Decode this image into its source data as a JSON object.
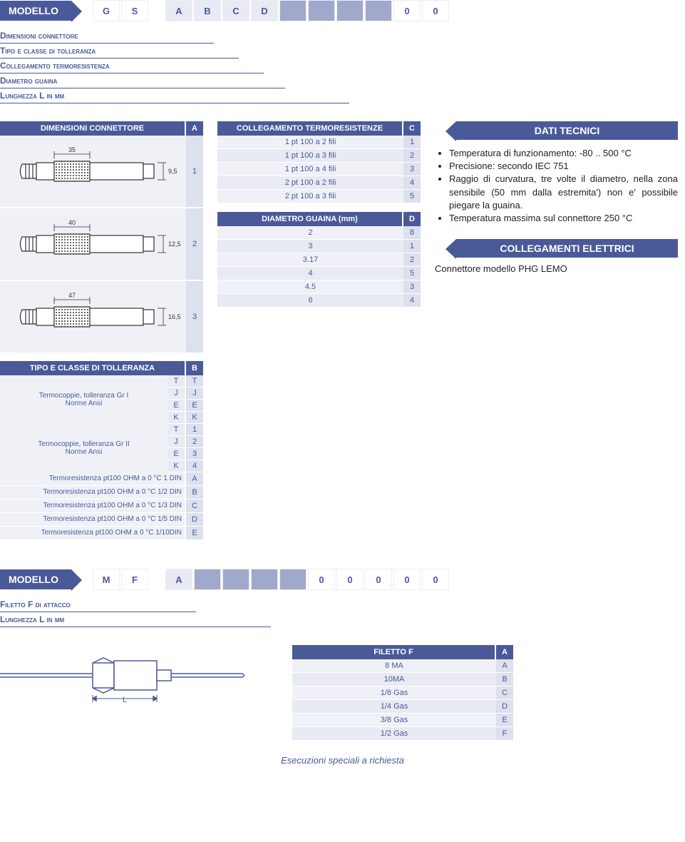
{
  "model1": {
    "label": "MODELLO",
    "cells": [
      "G",
      "S",
      "",
      "A",
      "B",
      "C",
      "D",
      "",
      "",
      "",
      "",
      "0",
      "0"
    ]
  },
  "legend1": [
    "Dimensioni connettore",
    "Tipo e classe di tolleranza",
    "Collegamento termoresistenza",
    "Diametro guaina",
    "Lunghezza L in mm"
  ],
  "dimConn": {
    "header": "DIMENSIONI CONNETTORE",
    "code": "A",
    "rows": [
      {
        "len": "35",
        "dia": "9,5",
        "code": "1"
      },
      {
        "len": "40",
        "dia": "12,5",
        "code": "2"
      },
      {
        "len": "47",
        "dia": "16,5",
        "code": "3"
      }
    ]
  },
  "tolleranza": {
    "header": "TIPO E CLASSE DI TOLLERANZA",
    "code": "B",
    "group1": {
      "label": "Termocoppie, tolleranza Gr I\nNorme Ansi",
      "rows": [
        [
          "T",
          "T"
        ],
        [
          "J",
          "J"
        ],
        [
          "E",
          "E"
        ],
        [
          "K",
          "K"
        ]
      ]
    },
    "group2": {
      "label": "Termocoppie, tolleranza Gr II\nNorme Ansi",
      "rows": [
        [
          "T",
          "1"
        ],
        [
          "J",
          "2"
        ],
        [
          "E",
          "3"
        ],
        [
          "K",
          "4"
        ]
      ]
    },
    "singles": [
      {
        "label": "Termoresistenza pt100 OHM a 0 °C 1 DIN",
        "code": "A"
      },
      {
        "label": "Termoresistenza pt100 OHM a 0 °C 1/2 DIN",
        "code": "B"
      },
      {
        "label": "Termoresistenza pt100 OHM a 0 °C 1/3 DIN",
        "code": "C"
      },
      {
        "label": "Termoresistenza pt100 OHM a 0 °C 1/5 DIN",
        "code": "D"
      },
      {
        "label": "Termoresistenza pt100 OHM a 0 °C 1/10DIN",
        "code": "E"
      }
    ]
  },
  "colleg": {
    "header": "COLLEGAMENTO TERMORESISTENZE",
    "code": "C",
    "rows": [
      {
        "v": "1 pt 100 a 2 fili",
        "c": "1"
      },
      {
        "v": "1 pt 100 a 3 fili",
        "c": "2"
      },
      {
        "v": "1 pt 100 a 4 fili",
        "c": "3"
      },
      {
        "v": "2 pt 100 a 2 fili",
        "c": "4"
      },
      {
        "v": "2 pt 100 a 3 fili",
        "c": "5"
      }
    ]
  },
  "diametro": {
    "header": "DIAMETRO GUAINA (mm)",
    "code": "D",
    "rows": [
      {
        "v": "2",
        "c": "8"
      },
      {
        "v": "3",
        "c": "1"
      },
      {
        "v": "3.17",
        "c": "2"
      },
      {
        "v": "4",
        "c": "5"
      },
      {
        "v": "4.5",
        "c": "3"
      },
      {
        "v": "6",
        "c": "4"
      }
    ]
  },
  "datiTecnici": {
    "header": "DATI TECNICI",
    "bullets": [
      "Temperatura di funzionamento: -80 .. 500 °C",
      "Precisione: secondo IEC 751",
      "Raggio di curvatura, tre volte il diametro, nella zona sensibile (50 mm dalla estremita') non e'  possibile piegare la guaina.",
      "Temperatura massima sul connettore 250 °C"
    ]
  },
  "collegElet": {
    "header": "COLLEGAMENTI ELETTRICI",
    "text": "Connettore modello PHG LEMO"
  },
  "model2": {
    "label": "MODELLO",
    "cells": [
      "M",
      "F",
      "",
      "A",
      "",
      "",
      "",
      "",
      "0",
      "0",
      "0",
      "0",
      "0"
    ]
  },
  "legend2": [
    "Filetto F di attacco",
    "Lunghezza L in mm"
  ],
  "filetto": {
    "header": "FILETTO F",
    "code": "A",
    "rows": [
      {
        "v": "8 MA",
        "c": "A"
      },
      {
        "v": "10MA",
        "c": "B"
      },
      {
        "v": "1/8 Gas",
        "c": "C"
      },
      {
        "v": "1/4 Gas",
        "c": "D"
      },
      {
        "v": "3/8 Gas",
        "c": "E"
      },
      {
        "v": "1/2 Gas",
        "c": "F"
      }
    ]
  },
  "footer": "Esecuzioni speciali a richiesta",
  "colors": {
    "primary": "#4a5a99",
    "light": "#e8eaf4",
    "lighter": "#f0f1f7",
    "code": "#dde0ed",
    "fill": "#a0a8cc"
  }
}
